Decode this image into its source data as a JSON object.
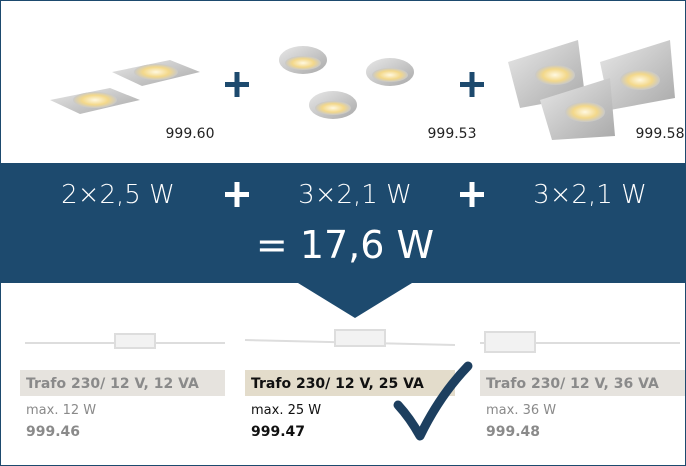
{
  "products": [
    {
      "code": "999.60"
    },
    {
      "code": "999.53"
    },
    {
      "code": "999.58"
    }
  ],
  "wattages": [
    "2×2,5 W",
    "3×2,1 W",
    "3×2,1 W"
  ],
  "total": "= 17,6 W",
  "transformers": [
    {
      "name": "Trafo 230/ 12 V, 12 VA",
      "max": "max. 12 W",
      "code": "999.46"
    },
    {
      "name": "Trafo 230/ 12 V, 25 VA",
      "max": "max. 25 W",
      "code": "999.47"
    },
    {
      "name": "Trafo 230/ 12 V, 36 VA",
      "max": "max. 36 W",
      "code": "999.48"
    }
  ]
}
